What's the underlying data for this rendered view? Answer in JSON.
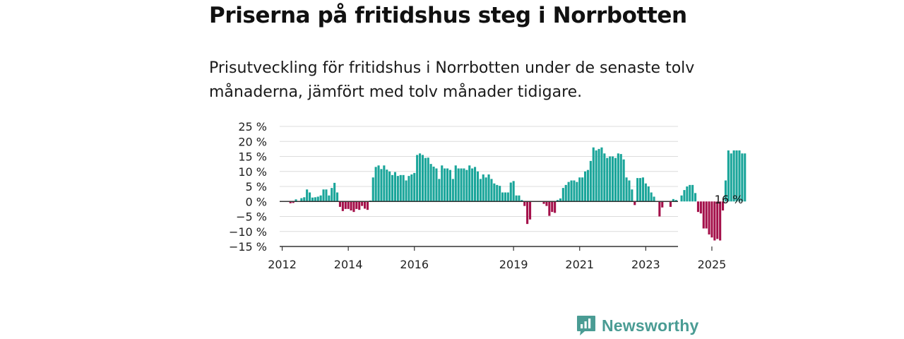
{
  "header": {
    "title": "Priserna på fritidshus steg i Norrbotten",
    "subtitle": "Prisutveckling för fritidshus i Norrbotten under de senaste tolv månaderna, jämfört med tolv månader tidigare."
  },
  "brand": {
    "name": "Newsworthy",
    "logo_icon": "bar-chart-speech-bubble-icon"
  },
  "colors": {
    "positive": "#1aa59a",
    "negative": "#a4104a",
    "brand": "#4a9c94",
    "grid": "#dcdcdc",
    "zero_line": "#333333"
  },
  "chart_data": {
    "type": "bar",
    "title": "Priserna på fritidshus steg i Norrbotten",
    "subtitle": "Prisutveckling för fritidshus i Norrbotten under de senaste tolv månaderna, jämfört med tolv månader tidigare.",
    "xlabel": "",
    "ylabel": "",
    "ylim": [
      -15,
      25
    ],
    "yticks": [
      25,
      20,
      15,
      10,
      5,
      0,
      -5,
      -10,
      -15
    ],
    "ytick_labels": [
      "25 %",
      "20 %",
      "15 %",
      "10 %",
      "5 %",
      "0 %",
      "−5 %",
      "−10 %",
      "−15 %"
    ],
    "xtick_labels": [
      "2012",
      "2014",
      "2016",
      "2019",
      "2021",
      "2023",
      "2025"
    ],
    "xtick_month_index": [
      0,
      24,
      48,
      84,
      108,
      132,
      156
    ],
    "grid": true,
    "annotation": {
      "text": "16 %",
      "month_index": 160
    },
    "start": "2012-01",
    "values": [
      0,
      0,
      0,
      -0.6,
      -0.5,
      0.7,
      0,
      1.1,
      1.4,
      4,
      3,
      1.3,
      1.4,
      1.6,
      2,
      4,
      4,
      2,
      4.5,
      6.2,
      3,
      -1.8,
      -3.2,
      -2.5,
      -2.5,
      -3,
      -3.5,
      -2.5,
      -2.8,
      -1.5,
      -2.4,
      -2.8,
      0.3,
      8,
      11.5,
      12,
      10.8,
      12,
      10.6,
      10,
      8.8,
      9.8,
      8.5,
      8.8,
      8.8,
      7,
      8.5,
      9,
      9.5,
      15.5,
      16,
      15.5,
      14.5,
      14.6,
      12.5,
      11.6,
      11,
      7.5,
      12,
      11,
      11,
      10.5,
      7.5,
      12,
      11,
      11,
      11,
      10.5,
      12,
      11,
      11.5,
      10,
      7.5,
      9,
      8,
      9,
      7.5,
      6,
      5.5,
      5.2,
      3,
      3,
      3,
      6.3,
      6.8,
      2,
      2,
      0.5,
      -1.5,
      -7.5,
      -6,
      0,
      0,
      0,
      0,
      -0.8,
      -1.5,
      -4.8,
      -3.5,
      -3.8,
      0.5,
      1,
      4.5,
      5.5,
      6.5,
      7,
      7,
      6.5,
      8,
      8,
      10,
      10.5,
      13.5,
      18,
      17,
      17.5,
      18,
      16,
      14.5,
      15,
      15,
      14.5,
      16,
      15.8,
      14,
      8,
      7,
      4,
      -1.2,
      7.8,
      7.8,
      8,
      6,
      5,
      3,
      1.6,
      0,
      -5,
      -2,
      0,
      0,
      -1.8,
      0.8,
      0.5,
      0,
      2,
      3.8,
      5,
      5.5,
      5.5,
      2.8,
      -3.5,
      -4,
      -9,
      -9,
      -11,
      -12,
      -13,
      -12.5,
      -13,
      -3,
      7,
      17,
      16,
      17,
      17,
      17,
      16,
      16
    ]
  }
}
